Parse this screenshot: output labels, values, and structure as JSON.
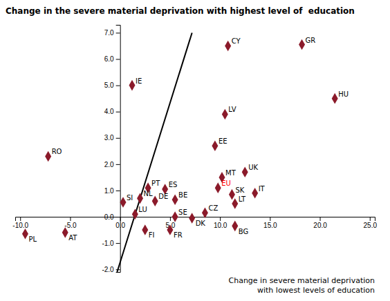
{
  "chart_data": {
    "type": "scatter",
    "title": "Change in the severe material deprivation with highest level of  education",
    "xlabel": [
      "Change in severe material deprivation",
      "with lowest levels of education"
    ],
    "xlim": [
      -10.5,
      25.5
    ],
    "ylim": [
      -2.1,
      7.3
    ],
    "xticks": [
      {
        "value": -10.0,
        "label": "-10.0"
      },
      {
        "value": -5.0,
        "label": "-5.0"
      },
      {
        "value": 0.0,
        "label": "0.0"
      },
      {
        "value": 5.0,
        "label": "5.0"
      },
      {
        "value": 10.0,
        "label": "10.0"
      },
      {
        "value": 15.0,
        "label": "15.0"
      },
      {
        "value": 20.0,
        "label": "20.0"
      },
      {
        "value": 25.0,
        "label": "25.0"
      }
    ],
    "yticks": [
      {
        "value": -2.0,
        "label": "-2.0"
      },
      {
        "value": -1.0,
        "label": "-1.0"
      },
      {
        "value": 0.0,
        "label": "0.0"
      },
      {
        "value": 1.0,
        "label": "1.0"
      },
      {
        "value": 2.0,
        "label": "2.0"
      },
      {
        "value": 3.0,
        "label": "3.0"
      },
      {
        "value": 4.0,
        "label": "4.0"
      },
      {
        "value": 5.0,
        "label": "5.0"
      },
      {
        "value": 6.0,
        "label": "6.0"
      },
      {
        "value": 7.0,
        "label": "7.0"
      }
    ],
    "series": [
      {
        "type": "scatter",
        "marker": "diamond",
        "color": "#8B1A2A",
        "labels": [
          "PL",
          "AT",
          "RO",
          "IE",
          "CY",
          "GR",
          "HU",
          "LV",
          "EE",
          "UK",
          "MT",
          "EU",
          "PT",
          "ES",
          "IT",
          "SK",
          "NL",
          "DE",
          "BE",
          "SI",
          "LT",
          "LU",
          "CZ",
          "SE",
          "DK",
          "BG",
          "FI",
          "FR"
        ],
        "label_colors": [
          "black",
          "black",
          "black",
          "black",
          "black",
          "black",
          "black",
          "black",
          "black",
          "black",
          "black",
          "red",
          "black",
          "black",
          "black",
          "black",
          "black",
          "black",
          "black",
          "black",
          "black",
          "black",
          "black",
          "black",
          "black",
          "black",
          "black",
          "black"
        ],
        "x": [
          -9.5,
          -5.5,
          -7.2,
          1.2,
          10.8,
          18.2,
          21.5,
          10.5,
          9.5,
          12.5,
          10.2,
          9.8,
          2.8,
          4.5,
          13.5,
          11.2,
          2.0,
          3.5,
          5.5,
          0.3,
          11.5,
          1.5,
          8.5,
          5.5,
          7.2,
          11.5,
          2.5,
          5.0
        ],
        "values": [
          -0.65,
          -0.6,
          2.3,
          5.0,
          6.5,
          6.55,
          4.5,
          3.9,
          2.7,
          1.7,
          1.5,
          1.1,
          1.1,
          1.05,
          0.9,
          0.85,
          0.7,
          0.6,
          0.65,
          0.55,
          0.5,
          0.1,
          0.15,
          0.0,
          -0.05,
          -0.35,
          -0.5,
          -0.5
        ]
      },
      {
        "type": "line",
        "color": "black",
        "x": [
          -0.3,
          7.2
        ],
        "values": [
          -2.1,
          7.0
        ]
      }
    ]
  }
}
